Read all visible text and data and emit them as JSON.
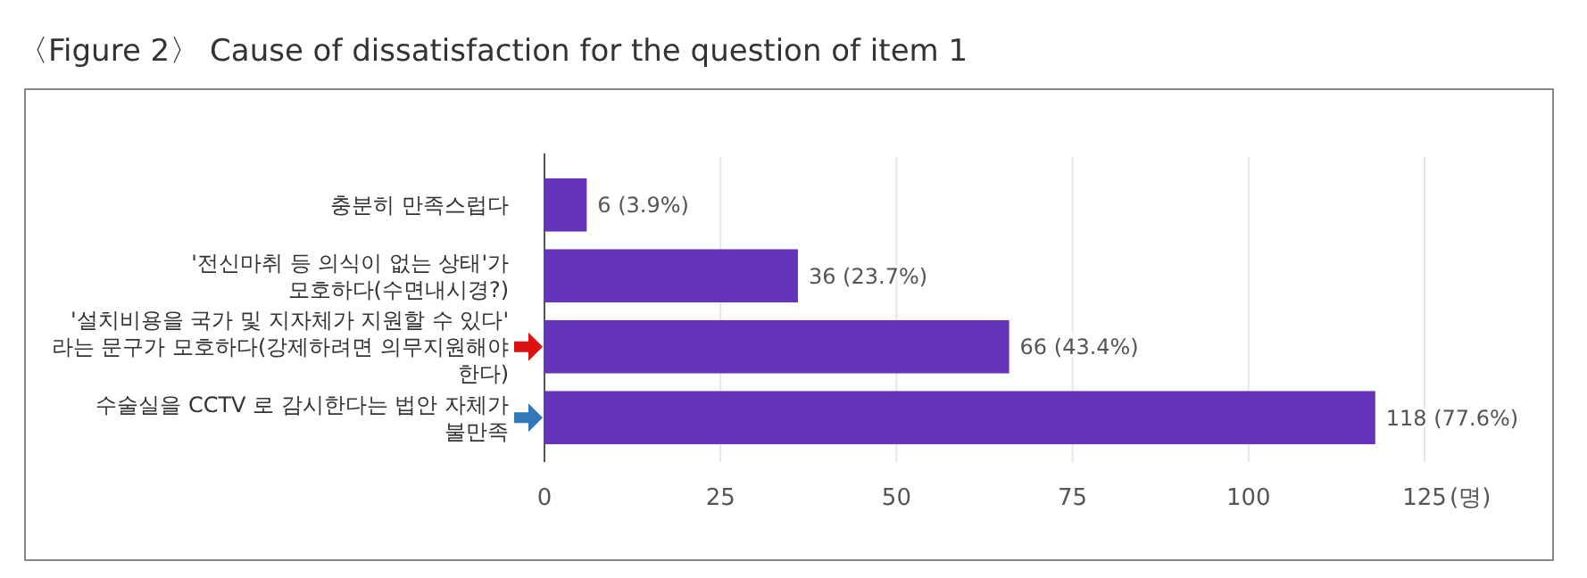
{
  "chart_data": {
    "type": "bar",
    "orientation": "horizontal",
    "title": "〈Figure 2〉 Cause of dissatisfaction for the question of item 1",
    "xlabel": "(명)",
    "categories": [
      "충분히 만족스럽다",
      "'전신마취 등 의식이 없는 상태'가 모호하다(수면내시경?)",
      "'설치비용을 국가 및 지자체가 지원할 수 있다' 라는 문구가 모호하다(강제하려면 의무지원해야 한다)",
      "수술실을 CCTV 로 감시한다는 법안 자체가 불만족"
    ],
    "values": [
      6,
      36,
      66,
      118
    ],
    "value_labels": [
      "6 (3.9%)",
      "36 (23.7%)",
      "66 (43.4%)",
      "118 (77.6%)"
    ],
    "color": "#6633bb",
    "xlim": [
      0,
      125
    ],
    "xticks": [
      0,
      25,
      50,
      75,
      100,
      125
    ],
    "grid": "x"
  }
}
